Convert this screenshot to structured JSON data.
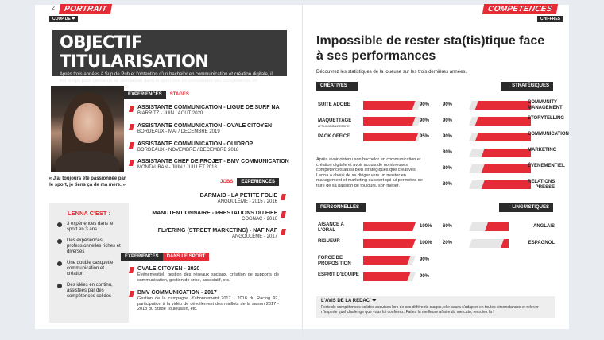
{
  "left_page": {
    "page_number": "2",
    "section": "PORTRAIT",
    "tag": "COUP DE ❤",
    "hero": {
      "title": "OBJECTIF TITULARISATION",
      "intro": "Après trois années à Sup de Pub et l'obtention d'un bachelor en communication et création digitale, il est temps pour Lenna de se spécialiser dans le sport tout en consolidant ses compétences en entreprise durant son alternance."
    },
    "quote": "« J'ai toujours été passionnée par le sport, je tiens ça de ma mère. »",
    "lenna": {
      "title": "LENNA C'EST :",
      "points": [
        "3 expériences dans le sport en 3 ans",
        "Des expériences professionnelles riches et diverses",
        "Une double casquette communication et création",
        "Des idées en continu, assistées par des compétences solides"
      ]
    },
    "stages": {
      "tag_dark": "EXPERIENCES",
      "tag_red": "STAGES",
      "items": [
        {
          "title": "ASSISTANTE COMMUNICATION - LIGUE DE SURF NA",
          "sub": "BIARRITZ - JUIN / AOUT 2020"
        },
        {
          "title": "ASSISTANTE COMMUNICATION - OVALE CITOYEN",
          "sub": "BORDEAUX - MAI / DECEMBRE 2019"
        },
        {
          "title": "ASSISTANTE COMMUNICATION - OUIDROP",
          "sub": "BORDEAUX - NOVEMBRE / DECEMBRE 2018"
        },
        {
          "title": "ASSISTANTE CHEF DE PROJET - BMV COMMUNICATION",
          "sub": "MONTAUBAN - JUIN / JUILLET 2018"
        }
      ]
    },
    "jobs": {
      "tag_red": "JOBS",
      "tag_dark": "EXPERIENCES",
      "items": [
        {
          "title": "BARMAID - LA PETITE FOLIE",
          "sub": "ANGOULÊME - 2015 / 2016"
        },
        {
          "title": "MANUTENTIONNAIRE - PRESTATIONS DU FIEF",
          "sub": "COGNAC - 2016"
        },
        {
          "title": "FLYERING (STREET MARKETING) - NAF NAF",
          "sub": "ANGOULÊME - 2017"
        }
      ]
    },
    "sport": {
      "tag_dark": "EXPERIENCES",
      "tag_red": "DANS LE SPORT",
      "items": [
        {
          "title": "OVALE CITOYEN - 2020",
          "desc": "Evénementiel, gestion des réseaux sociaux, création de supports de communication, gestion de crise, associatif, etc."
        },
        {
          "title": "BMV COMMUNICATION - 2017",
          "desc": "Gestion de la campagne d'abonnement 2017 - 2018 du Racing 92, participation à la vidéo de dévoilement des maillots de la saison 2017 - 2018 du Stade Toulousain, etc."
        }
      ]
    }
  },
  "right_page": {
    "page_number": "3",
    "section": "COMPETENCES",
    "tag": "CHIFFRES",
    "title": "Impossible de rester sta(tis)tique face à ses performances",
    "subtitle": "Découvrez les statistiques de la joueuse sur les trois dernières années.",
    "paragraph": "Après avoir obtenu son bachelor en communication et création digitale et avoir acquis de nombreuses compétences aussi bien stratégiques que créatives, Lenna a choisi de se diriger vers un master en management et marketing du sport qui lui permettra de faire de sa passion de toujours, son métier.",
    "accent_color": "#e52b36",
    "creatives": {
      "header": "CRÉATIVES",
      "items": [
        {
          "label": "SUITE ADOBE",
          "sublabel": "",
          "value": 90,
          "text": "90%"
        },
        {
          "label": "MAQUETTAGE",
          "sublabel": "APPLICATION/WEBSITE",
          "value": 90,
          "text": "90%"
        },
        {
          "label": "PACK OFFICE",
          "sublabel": "",
          "value": 95,
          "text": "95%"
        }
      ]
    },
    "strategiques": {
      "header": "STRATÉGIQUES",
      "items": [
        {
          "label": "COMMUNITY MANAGEMENT",
          "value": 90,
          "text": "90%"
        },
        {
          "label": "STORYTELLING",
          "value": 90,
          "text": "90%"
        },
        {
          "label": "COMMUNICATION",
          "value": 90,
          "text": "90%"
        },
        {
          "label": "MARKETING",
          "value": 80,
          "text": "80%"
        },
        {
          "label": "ÉVÉNEMENTIEL",
          "value": 80,
          "text": "80%"
        },
        {
          "label": "RELATIONS PRESSE",
          "value": 80,
          "text": "80%"
        }
      ]
    },
    "personnelles": {
      "header": "PERSONNELLES",
      "items": [
        {
          "label": "AISANCE A L'ORAL",
          "value": 100,
          "text": "100%"
        },
        {
          "label": "RIGUEUR",
          "value": 100,
          "text": "100%"
        },
        {
          "label": "FORCE DE PROPOSITION",
          "value": 90,
          "text": "90%"
        },
        {
          "label": "ESPRIT D'ÉQUIPE",
          "value": 90,
          "text": "90%"
        }
      ]
    },
    "linguistiques": {
      "header": "LINGUISTIQUES",
      "items": [
        {
          "label": "ANGLAIS",
          "value": 60,
          "text": "60%"
        },
        {
          "label": "ESPAGNOL",
          "value": 20,
          "text": "20%"
        }
      ]
    },
    "redac": {
      "title": "L'AVIS DE LA REDAC' ❤",
      "text": "Forte de compétences solides acquises lors de ses différents stages, elle saura s'adapter en toutes circonstances et relever n'importe quel challenge que vous lui confierez. Faites la meilleure affaire du mercato, recrutez la !"
    }
  }
}
